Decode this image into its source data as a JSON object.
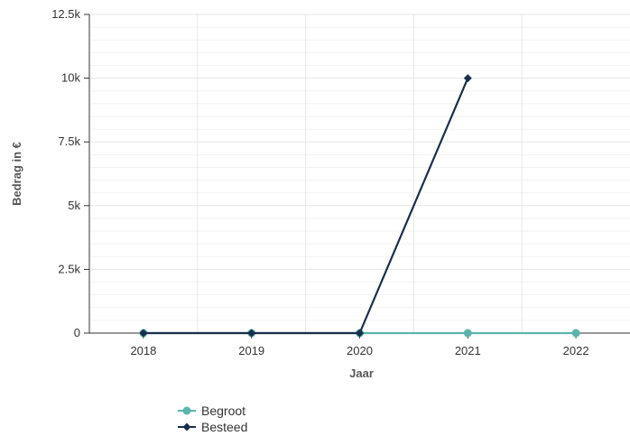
{
  "chart_data": {
    "type": "line",
    "x": [
      "2018",
      "2019",
      "2020",
      "2021",
      "2022"
    ],
    "xlabel": "Jaar",
    "ylabel": "Bedrag in €",
    "ylim": [
      0,
      12500
    ],
    "yticks": [
      0,
      2500,
      5000,
      7500,
      10000,
      12500
    ],
    "ytick_labels": [
      "0",
      "2.5k",
      "5k",
      "7.5k",
      "10k",
      "12.5k"
    ],
    "grid": true,
    "legend_position": "bottom-left",
    "series": [
      {
        "name": "Begroot",
        "color": "#5ab4ac",
        "marker": "circle",
        "values": [
          0,
          0,
          0,
          0,
          0
        ]
      },
      {
        "name": "Besteed",
        "color": "#1b2e4b",
        "marker": "diamond",
        "values": [
          0,
          0,
          0,
          10000,
          null
        ]
      }
    ]
  }
}
